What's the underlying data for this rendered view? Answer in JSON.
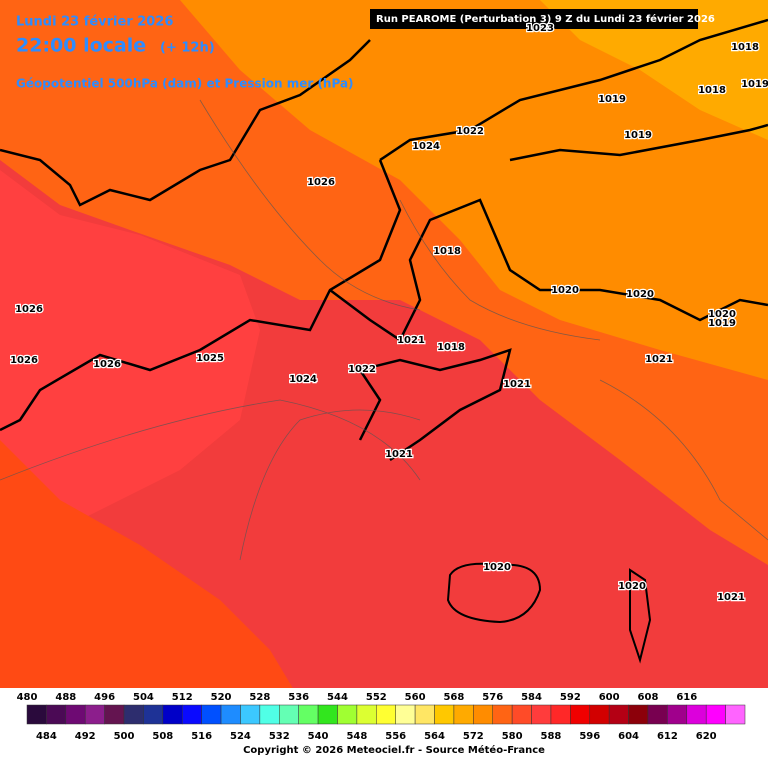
{
  "header": {
    "date": "Lundi 23 février 2026",
    "time": "22:00 locale",
    "lead": "(+ 12h)",
    "field": "Géopotentiel 500hPa (dam) et Pression mer (hPa)",
    "run": "Run PEAROME (Perturbation 3) 9 Z du Lundi 23 février 2026"
  },
  "isobar_labels": [
    "1023",
    "1018",
    "1019",
    "1019",
    "1018",
    "1022",
    "1024",
    "1019",
    "1026",
    "1018",
    "1020",
    "1020",
    "1020",
    "1019",
    "1026",
    "1021",
    "1018",
    "1021",
    "1026",
    "1026",
    "1025",
    "1022",
    "1024",
    "1021",
    "1021",
    "1020",
    "1020",
    "1021"
  ],
  "legend": {
    "colors": [
      "#2a0a3c",
      "#4b0a55",
      "#6e0a73",
      "#8c1e8c",
      "#641450",
      "#2d2d6e",
      "#1e3296",
      "#0000c8",
      "#0a0aff",
      "#0050ff",
      "#1e8cff",
      "#3cc8ff",
      "#50ffe6",
      "#64ffb4",
      "#64ff64",
      "#32e61e",
      "#a0ff32",
      "#dcff32",
      "#ffff32",
      "#ffff96",
      "#ffe664",
      "#ffc800",
      "#ffaa00",
      "#ff8c00",
      "#ff6414",
      "#ff4b28",
      "#ff3c3c",
      "#ff2828",
      "#f00000",
      "#d20000",
      "#b40014",
      "#8c000a",
      "#780050",
      "#a0008c",
      "#dc00dc",
      "#ff00ff",
      "#ff64ff"
    ],
    "top_labels": [
      "480",
      "488",
      "496",
      "504",
      "512",
      "520",
      "528",
      "536",
      "544",
      "552",
      "560",
      "568",
      "576",
      "584",
      "592",
      "600",
      "608",
      "616"
    ],
    "bottom_labels": [
      "484",
      "492",
      "500",
      "508",
      "516",
      "524",
      "532",
      "540",
      "548",
      "556",
      "564",
      "572",
      "580",
      "588",
      "596",
      "604",
      "612",
      "620"
    ]
  },
  "footer": "Copyright © 2026 Meteociel.fr - Source Météo-France"
}
